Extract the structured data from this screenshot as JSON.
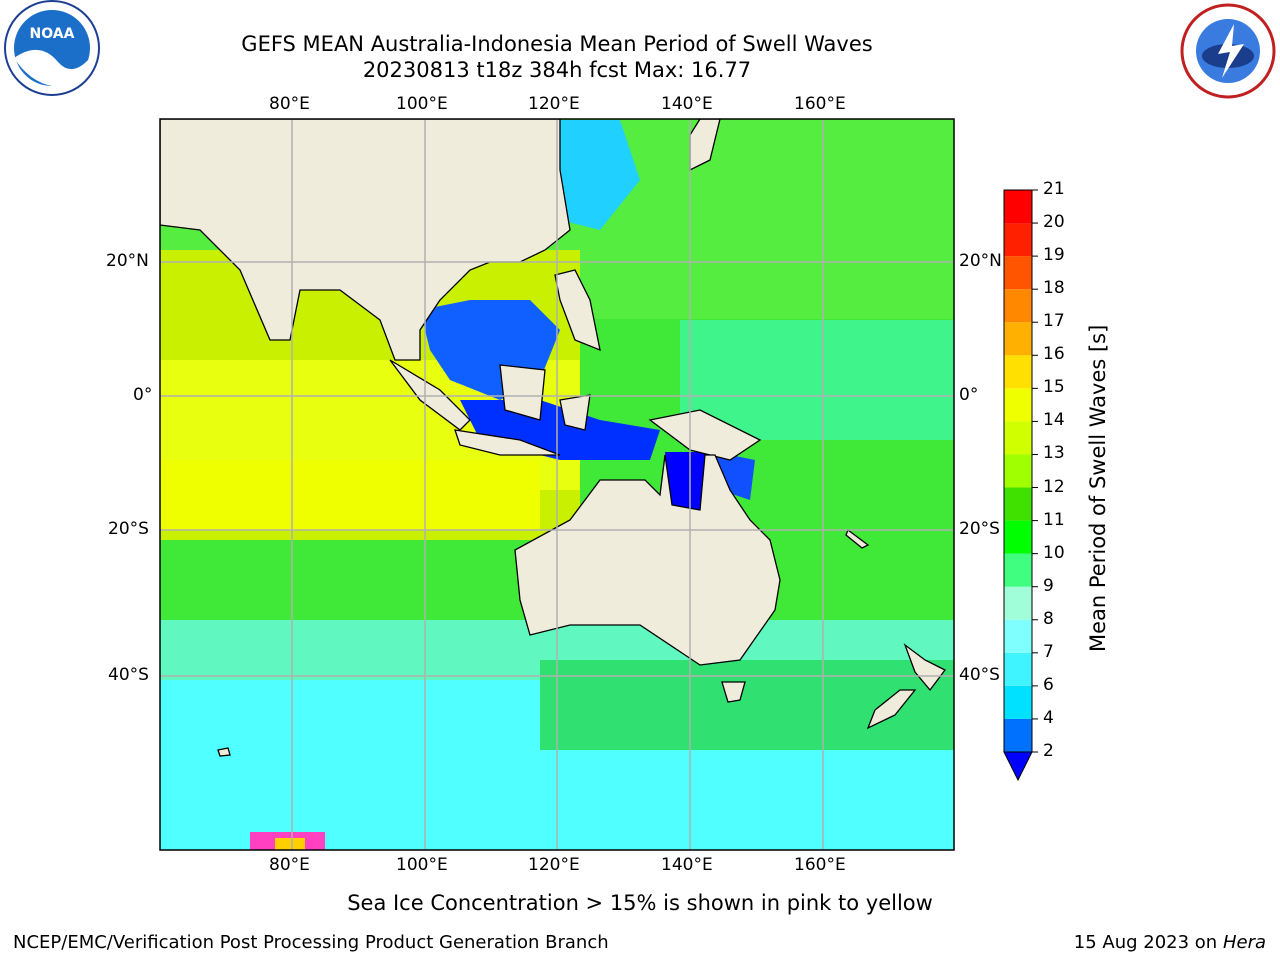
{
  "title_line1": "GEFS MEAN Australia-Indonesia Mean Period of Swell Waves",
  "title_line2": "20230813 t18z 384h fcst   Max: 16.77",
  "logos": {
    "left": "noara-logo",
    "right": "nws-logo",
    "left_text": "NOAA"
  },
  "map": {
    "lon_ticks": [
      "80°E",
      "100°E",
      "120°E",
      "140°E",
      "160°E"
    ],
    "lat_ticks": [
      "20°N",
      "0°",
      "20°S",
      "40°S"
    ],
    "colors": {
      "land": "#f0ecdc",
      "grid": "#b0b0b0",
      "frame": "#000000"
    }
  },
  "colorbar": {
    "label": "Mean Period of Swell Waves [s]",
    "levels": [
      "2",
      "4",
      "6",
      "7",
      "8",
      "9",
      "10",
      "11",
      "12",
      "13",
      "14",
      "15",
      "16",
      "17",
      "18",
      "19",
      "20",
      "21"
    ],
    "colors": [
      "#0000ff",
      "#0070ff",
      "#00e0ff",
      "#40f4ff",
      "#80ffff",
      "#a0ffd8",
      "#40ff80",
      "#00ff00",
      "#40e000",
      "#a0ff00",
      "#d0ff00",
      "#f0ff00",
      "#ffe000",
      "#ffb000",
      "#ff8800",
      "#ff5500",
      "#ff2000",
      "#ff0000"
    ]
  },
  "caption": "Sea Ice Concentration > 15% is shown in pink to yellow",
  "footer_left": "NCEP/EMC/Verification Post Processing Product Generation Branch",
  "footer_right_date": "15 Aug 2023 on",
  "footer_right_host": "Hera"
}
